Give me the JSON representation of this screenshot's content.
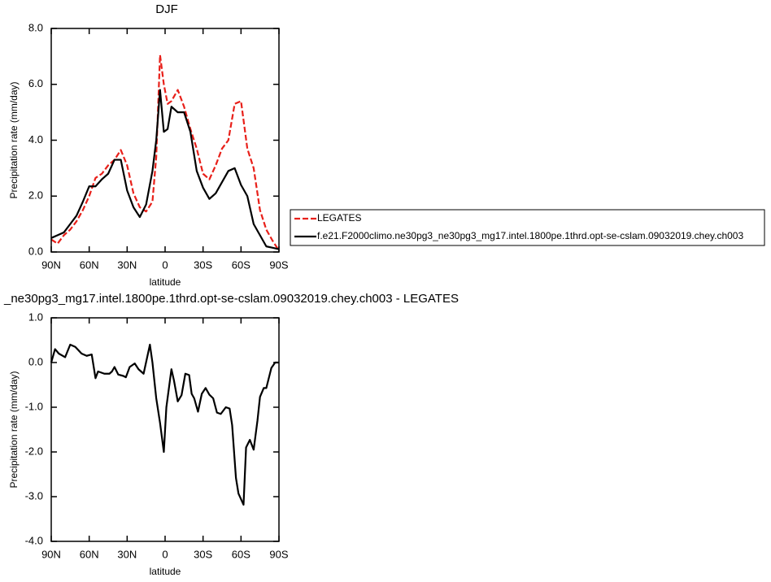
{
  "chart_data": [
    {
      "type": "line",
      "title": "DJF",
      "xlabel": "latitude",
      "ylabel": "Precipitation rate (mm/day)",
      "x": [
        90,
        85,
        80,
        75,
        70,
        65,
        60,
        55,
        50,
        45,
        40,
        35,
        30,
        25,
        20,
        15,
        10,
        7,
        4,
        1,
        -2,
        -5,
        -10,
        -15,
        -20,
        -25,
        -30,
        -35,
        -40,
        -45,
        -50,
        -55,
        -60,
        -65,
        -70,
        -75,
        -80,
        -85,
        -90
      ],
      "series": [
        {
          "name": "LEGATES",
          "color": "#e8201a",
          "dash": true,
          "values": [
            0.45,
            0.3,
            0.6,
            0.8,
            1.1,
            1.5,
            2.0,
            2.65,
            2.8,
            3.1,
            3.3,
            3.65,
            3.1,
            2.1,
            1.6,
            1.45,
            1.8,
            3.4,
            7.05,
            6.0,
            5.3,
            5.4,
            5.8,
            5.2,
            4.4,
            3.7,
            2.8,
            2.6,
            3.1,
            3.7,
            4.0,
            5.3,
            5.4,
            3.7,
            3.0,
            1.5,
            0.8,
            0.4,
            0.05
          ]
        },
        {
          "name": "f.e21.F2000climo.ne30pg3_ne30pg3_mg17.intel.1800pe.1thrd.opt-se-cslam.09032019.chey.ch003",
          "color": "#000000",
          "dash": false,
          "values": [
            0.5,
            0.6,
            0.7,
            1.0,
            1.3,
            1.8,
            2.35,
            2.35,
            2.6,
            2.8,
            3.3,
            3.3,
            2.2,
            1.6,
            1.25,
            1.7,
            2.9,
            4.0,
            5.8,
            4.3,
            4.4,
            5.2,
            5.0,
            5.0,
            4.3,
            2.9,
            2.3,
            1.9,
            2.1,
            2.5,
            2.9,
            3.0,
            2.4,
            2.0,
            1.0,
            0.6,
            0.2,
            0.15,
            0.1
          ]
        }
      ],
      "xlim": [
        90,
        -90
      ],
      "xticks": [
        {
          "value": 90,
          "label": "90N"
        },
        {
          "value": 60,
          "label": "60N"
        },
        {
          "value": 30,
          "label": "30N"
        },
        0,
        {
          "value": -30,
          "label": "30S"
        },
        {
          "value": -60,
          "label": "60S"
        },
        {
          "value": -90,
          "label": "90S"
        }
      ],
      "ylim": [
        0,
        8
      ],
      "yticks": [
        {
          "value": 0,
          "label": "0.0"
        },
        {
          "value": 2,
          "label": "2.0"
        },
        {
          "value": 4,
          "label": "4.0"
        },
        {
          "value": 6,
          "label": "6.0"
        },
        {
          "value": 8,
          "label": "8.0"
        }
      ],
      "legend": "right"
    },
    {
      "type": "line",
      "title": "_ne30pg3_mg17.intel.1800pe.1thrd.opt-se-cslam.09032019.chey.ch003 - LEGATES",
      "xlabel": "latitude",
      "ylabel": "Precipitation rate (mm/day)",
      "x": [
        90,
        87,
        84,
        79,
        75,
        71,
        66,
        62,
        58,
        55,
        53,
        48,
        44,
        42,
        40,
        37,
        33,
        31,
        28,
        24,
        21,
        17,
        12,
        10,
        7,
        4,
        1,
        -1,
        -5,
        -7,
        -10,
        -13,
        -16,
        -19,
        -21,
        -23,
        -26,
        -29,
        -32,
        -35,
        -38,
        -41,
        -44,
        -48,
        -51,
        -53,
        -56,
        -58,
        -62,
        -64,
        -67,
        -70,
        -73,
        -75,
        -78,
        -80,
        -84,
        -87,
        -90
      ],
      "values": [
        0.0,
        0.3,
        0.2,
        0.12,
        0.4,
        0.35,
        0.2,
        0.15,
        0.18,
        -0.35,
        -0.2,
        -0.25,
        -0.25,
        -0.2,
        -0.1,
        -0.27,
        -0.3,
        -0.33,
        -0.1,
        -0.02,
        -0.15,
        -0.25,
        0.4,
        0.0,
        -0.8,
        -1.35,
        -2.0,
        -1.0,
        -0.15,
        -0.4,
        -0.87,
        -0.73,
        -0.25,
        -0.28,
        -0.7,
        -0.8,
        -1.1,
        -0.7,
        -0.57,
        -0.72,
        -0.8,
        -1.12,
        -1.15,
        -1.0,
        -1.03,
        -1.4,
        -2.58,
        -2.93,
        -3.18,
        -1.9,
        -1.73,
        -1.95,
        -1.3,
        -0.77,
        -0.57,
        -0.57,
        -0.12,
        0.0,
        0.0
      ],
      "color": "#000000",
      "xlim": [
        90,
        -90
      ],
      "xticks": [
        {
          "value": 90,
          "label": "90N"
        },
        {
          "value": 60,
          "label": "60N"
        },
        {
          "value": 30,
          "label": "30N"
        },
        0,
        {
          "value": -30,
          "label": "30S"
        },
        {
          "value": -60,
          "label": "60S"
        },
        {
          "value": -90,
          "label": "90S"
        }
      ],
      "ylim": [
        -4,
        1
      ],
      "yticks": [
        {
          "value": 1,
          "label": "1.0"
        },
        {
          "value": 0,
          "label": "0.0"
        },
        {
          "value": -1,
          "label": "-1.0"
        },
        {
          "value": -2,
          "label": "-2.0"
        },
        {
          "value": -3,
          "label": "-3.0"
        },
        {
          "value": -4,
          "label": "-4.0"
        }
      ]
    }
  ]
}
